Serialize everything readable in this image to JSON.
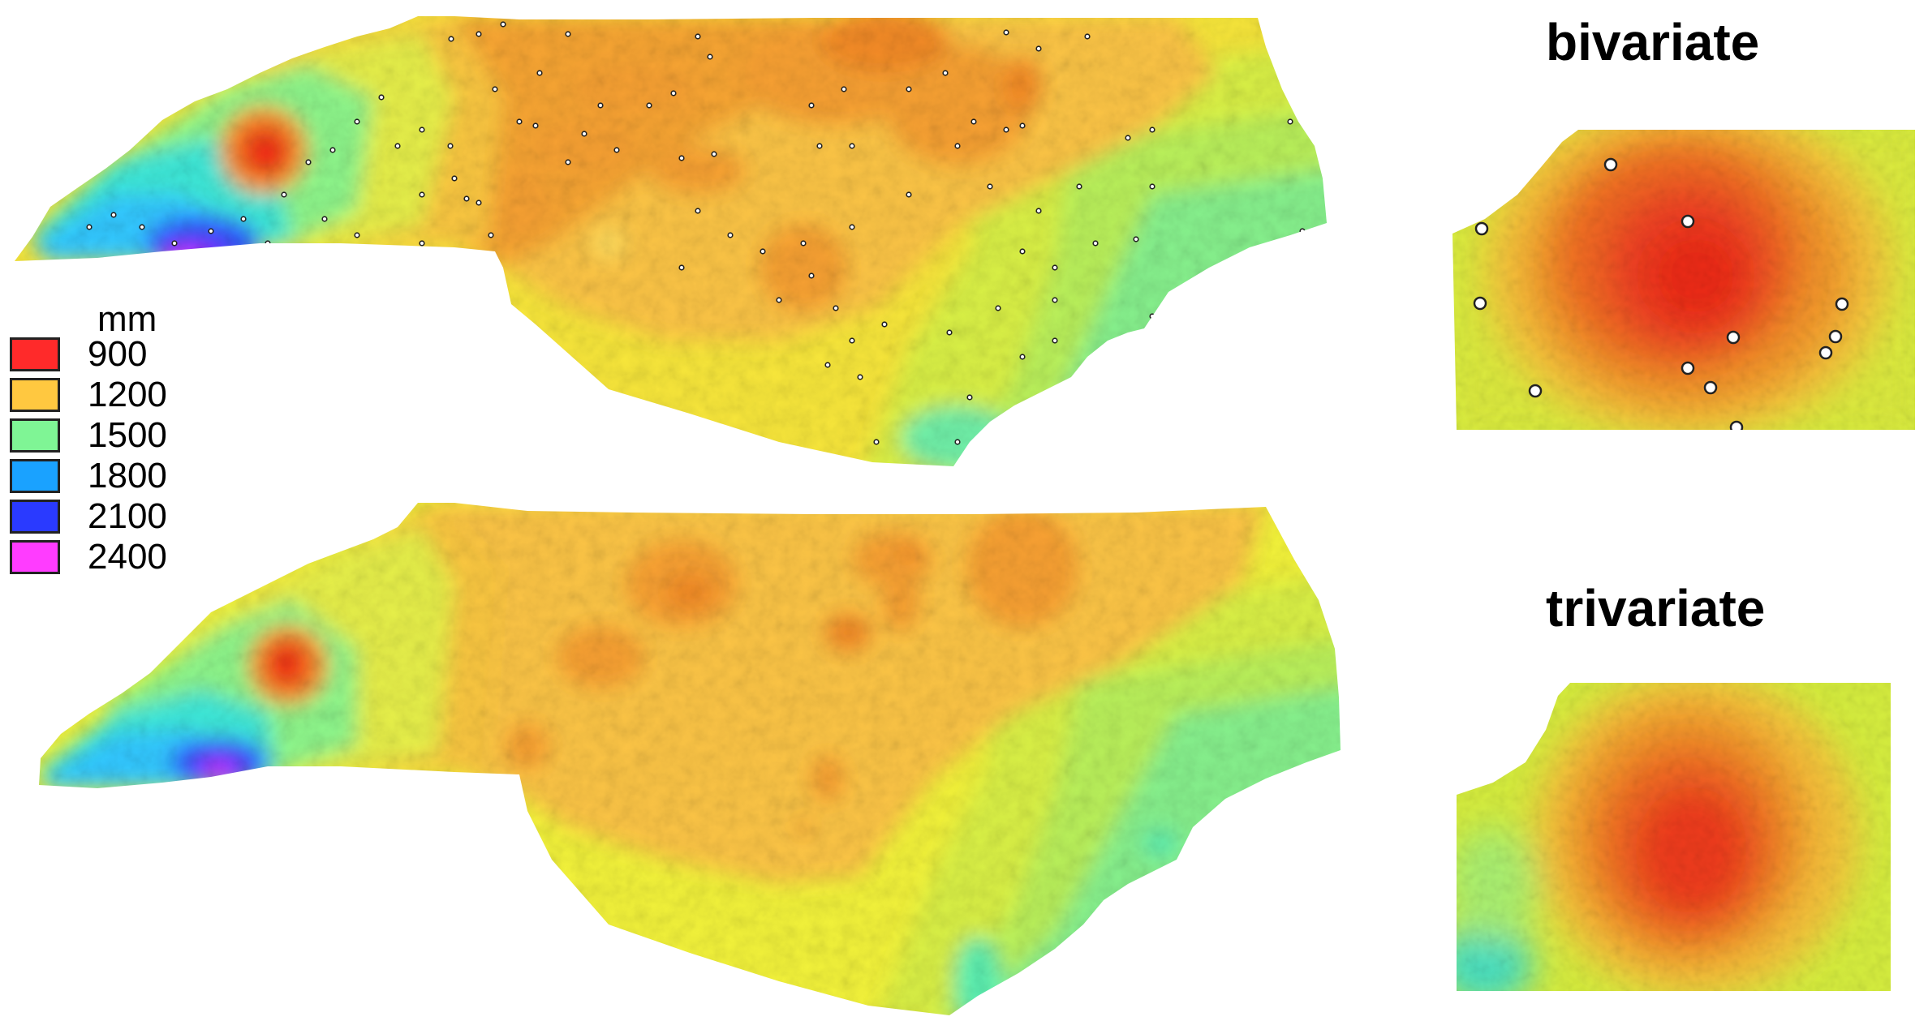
{
  "legend": {
    "title": "mm",
    "entries": [
      {
        "label": "900",
        "color": "#ff2a2a"
      },
      {
        "label": "1200",
        "color": "#ffc840"
      },
      {
        "label": "1500",
        "color": "#7ff595"
      },
      {
        "label": "1800",
        "color": "#1aa2ff"
      },
      {
        "label": "2100",
        "color": "#2a3aff"
      },
      {
        "label": "2400",
        "color": "#ff3cff"
      }
    ]
  },
  "insets": {
    "bivariate_title": "bivariate",
    "trivariate_title": "trivariate"
  },
  "colors": {
    "red": "#f02418",
    "orange_red": "#f2621e",
    "orange": "#f7a032",
    "amber": "#fcc244",
    "yellow": "#f2f23a",
    "yellow_green": "#d8f046",
    "green": "#8df58a",
    "teal": "#3ff0c8",
    "cyan": "#32d7ff",
    "blue": "#2b55ff",
    "purple": "#6a2cff",
    "magenta": "#ee3cff",
    "station": "#222222"
  }
}
